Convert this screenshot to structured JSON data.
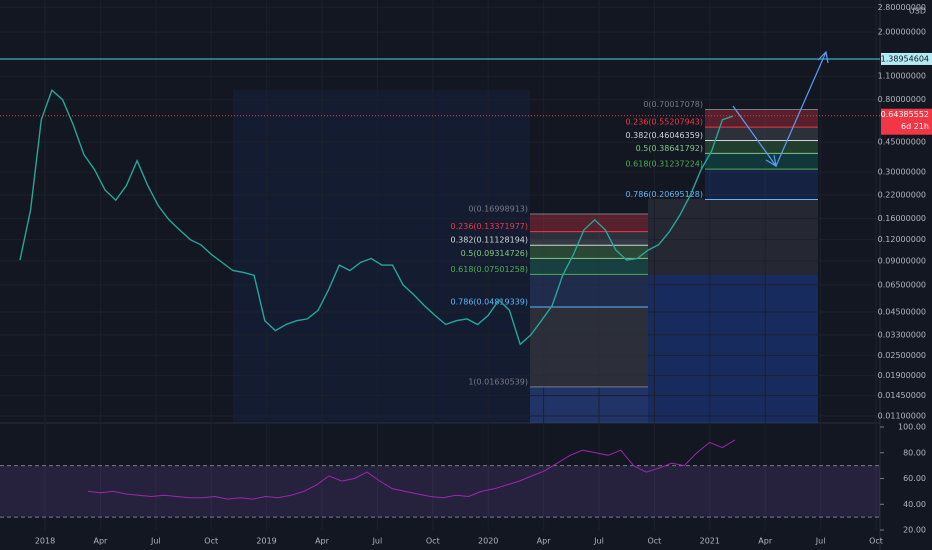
{
  "price_axis": {
    "currency": "USD",
    "scale": "log",
    "ylim": [
      0.01,
      3.09
    ],
    "ticks": [
      {
        "value": 2.8,
        "label": "2.80000000"
      },
      {
        "value": 2.0,
        "label": "2.00000000"
      },
      {
        "value": 1.1,
        "label": "1.10000000"
      },
      {
        "value": 0.8,
        "label": "0.80000000"
      },
      {
        "value": 0.45,
        "label": "0.45000000"
      },
      {
        "value": 0.3,
        "label": "0.30000000"
      },
      {
        "value": 0.22,
        "label": "0.22000000"
      },
      {
        "value": 0.16,
        "label": "0.16000000"
      },
      {
        "value": 0.12,
        "label": "0.12000000"
      },
      {
        "value": 0.09,
        "label": "0.09000000"
      },
      {
        "value": 0.065,
        "label": "0.06500000"
      },
      {
        "value": 0.045,
        "label": "0.04500000"
      },
      {
        "value": 0.033,
        "label": "0.03300000"
      },
      {
        "value": 0.025,
        "label": "0.02500000"
      },
      {
        "value": 0.019,
        "label": "0.01900000"
      },
      {
        "value": 0.0145,
        "label": "0.01450000"
      },
      {
        "value": 0.011,
        "label": "0.01100000"
      }
    ]
  },
  "time_axis": {
    "labels": [
      "2018",
      "Apr",
      "Jul",
      "Oct",
      "2019",
      "Apr",
      "Jul",
      "Oct",
      "2020",
      "Apr",
      "Jul",
      "Oct",
      "2021",
      "Apr",
      "Jul",
      "Oct"
    ]
  },
  "resistance_line": {
    "value": 1.38954604
  },
  "last_price": {
    "value": 0.64385552,
    "countdown": "6d 21h"
  },
  "price_series": {
    "color": "#26a69a",
    "values": [
      0.091,
      0.18,
      0.61,
      0.91,
      0.8,
      0.57,
      0.38,
      0.31,
      0.235,
      0.205,
      0.25,
      0.35,
      0.25,
      0.19,
      0.157,
      0.137,
      0.12,
      0.112,
      0.098,
      0.088,
      0.079,
      0.077,
      0.074,
      0.04,
      0.035,
      0.038,
      0.04,
      0.041,
      0.046,
      0.061,
      0.085,
      0.079,
      0.088,
      0.093,
      0.085,
      0.085,
      0.065,
      0.057,
      0.049,
      0.043,
      0.038,
      0.04,
      0.041,
      0.038,
      0.043,
      0.053,
      0.046,
      0.029,
      0.033,
      0.04,
      0.049,
      0.074,
      0.098,
      0.137,
      0.157,
      0.137,
      0.104,
      0.091,
      0.093,
      0.104,
      0.112,
      0.133,
      0.167,
      0.22,
      0.31,
      0.4,
      0.61,
      0.64
    ]
  },
  "rsi_axis": {
    "ylim": [
      4.5,
      103.1
    ],
    "upper_band": 70,
    "lower_band": 30,
    "ticks": [
      {
        "value": 100,
        "label": "100.00"
      },
      {
        "value": 80,
        "label": "80.00"
      },
      {
        "value": 60,
        "label": "60.00"
      },
      {
        "value": 40,
        "label": "40.00"
      },
      {
        "value": 20,
        "label": "20.00"
      }
    ]
  },
  "rsi_series": {
    "color": "#9c27b0",
    "values": [
      50,
      49,
      50,
      48,
      47,
      46,
      47,
      46,
      45,
      45,
      46,
      44,
      45,
      44,
      46,
      45,
      47,
      50,
      55,
      62,
      58,
      60,
      65,
      58,
      52,
      50,
      48,
      46,
      45,
      47,
      46,
      50,
      52,
      55,
      58,
      62,
      66,
      72,
      78,
      82,
      80,
      78,
      82,
      70,
      65,
      68,
      72,
      70,
      80,
      88,
      84,
      90
    ]
  },
  "fib_upper": {
    "levels": [
      {
        "label": "0(0.70017078)",
        "value": 0.70017078
      },
      {
        "label": "0.236(0.55207943)",
        "value": 0.55207943
      },
      {
        "label": "0.382(0.46046359)",
        "value": 0.46046359
      },
      {
        "label": "0.5(0.38641792)",
        "value": 0.38641792
      },
      {
        "label": "0.618(0.31237224)",
        "value": 0.31237224
      },
      {
        "label": "0.786(0.20695128)",
        "value": 0.20695128
      }
    ]
  },
  "fib_lower": {
    "levels": [
      {
        "label": "0(0.16998913)",
        "value": 0.16998913
      },
      {
        "label": "0.236(0.13371977)",
        "value": 0.13371977
      },
      {
        "label": "0.382(0.11128194)",
        "value": 0.11128194
      },
      {
        "label": "0.5(0.09314726)",
        "value": 0.09314726
      },
      {
        "label": "0.618(0.07501258)",
        "value": 0.07501258
      },
      {
        "label": "0.786(0.04819339)",
        "value": 0.04819339
      },
      {
        "label": "1(0.01630539)",
        "value": 0.01630539
      }
    ]
  }
}
